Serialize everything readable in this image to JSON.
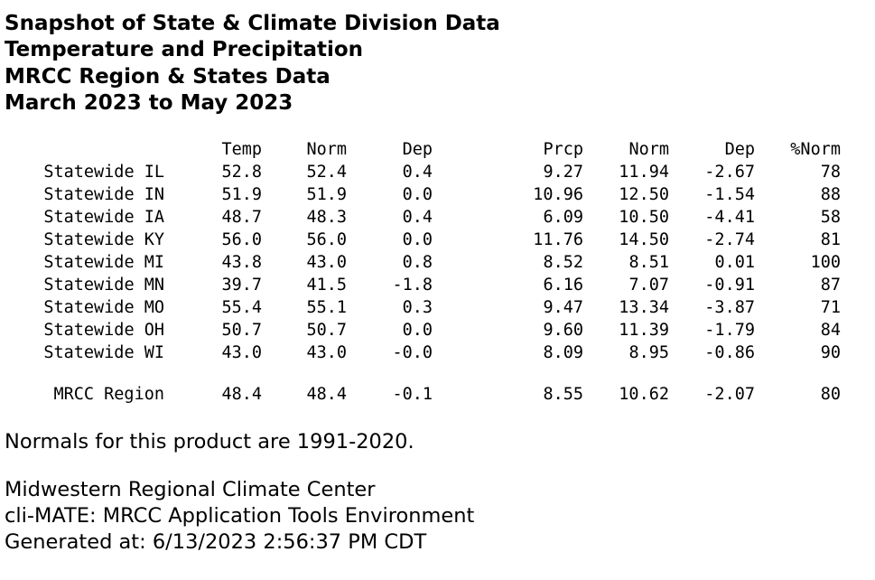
{
  "header": {
    "lines": [
      "Snapshot of State & Climate Division Data",
      "Temperature and Precipitation",
      "MRCC Region & States Data",
      "March 2023 to May 2023"
    ]
  },
  "table": {
    "columns": [
      "Temp",
      "Norm",
      "Dep",
      "Prcp",
      "Norm",
      "Dep",
      "%Norm"
    ],
    "rows": [
      {
        "name": "Statewide IL",
        "cells": [
          "52.8",
          "52.4",
          "0.4",
          "9.27",
          "11.94",
          "-2.67",
          "78"
        ]
      },
      {
        "name": "Statewide IN",
        "cells": [
          "51.9",
          "51.9",
          "0.0",
          "10.96",
          "12.50",
          "-1.54",
          "88"
        ]
      },
      {
        "name": "Statewide IA",
        "cells": [
          "48.7",
          "48.3",
          "0.4",
          "6.09",
          "10.50",
          "-4.41",
          "58"
        ]
      },
      {
        "name": "Statewide KY",
        "cells": [
          "56.0",
          "56.0",
          "0.0",
          "11.76",
          "14.50",
          "-2.74",
          "81"
        ]
      },
      {
        "name": "Statewide MI",
        "cells": [
          "43.8",
          "43.0",
          "0.8",
          "8.52",
          "8.51",
          "0.01",
          "100"
        ]
      },
      {
        "name": "Statewide MN",
        "cells": [
          "39.7",
          "41.5",
          "-1.8",
          "6.16",
          "7.07",
          "-0.91",
          "87"
        ]
      },
      {
        "name": "Statewide MO",
        "cells": [
          "55.4",
          "55.1",
          "0.3",
          "9.47",
          "13.34",
          "-3.87",
          "71"
        ]
      },
      {
        "name": "Statewide OH",
        "cells": [
          "50.7",
          "50.7",
          "0.0",
          "9.60",
          "11.39",
          "-1.79",
          "84"
        ]
      },
      {
        "name": "Statewide WI",
        "cells": [
          "43.0",
          "43.0",
          "-0.0",
          "8.09",
          "8.95",
          "-0.86",
          "90"
        ]
      }
    ],
    "region": {
      "name": "MRCC Region",
      "cells": [
        "48.4",
        "48.4",
        "-0.1",
        "8.55",
        "10.62",
        "-2.07",
        "80"
      ]
    }
  },
  "notes": {
    "normals": "Normals for this product are 1991-2020."
  },
  "footer": {
    "org": "Midwestern Regional Climate Center",
    "app": "cli-MATE: MRCC Application Tools Environment",
    "generated": "Generated at: 6/13/2023 2:56:37 PM CDT"
  }
}
